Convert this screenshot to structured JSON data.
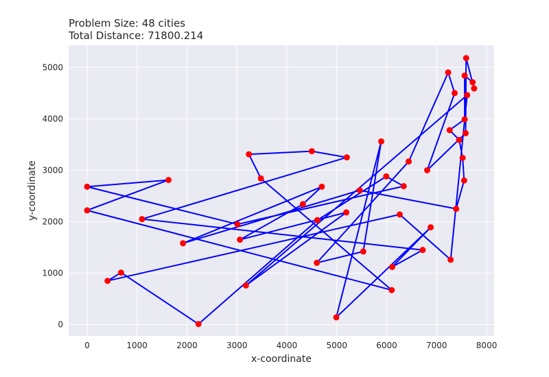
{
  "chart_data": {
    "type": "scatter",
    "title_lines": [
      "Problem Size: 48 cities",
      "Total Distance: 71800.214"
    ],
    "xlabel": "x-coordinate",
    "ylabel": "y-coordinate",
    "xlim": [
      -370,
      8150
    ],
    "ylim": [
      -220,
      5430
    ],
    "x_ticks": [
      0,
      1000,
      2000,
      3000,
      4000,
      5000,
      6000,
      7000,
      8000
    ],
    "y_ticks": [
      0,
      1000,
      2000,
      3000,
      4000,
      5000
    ],
    "grid": true,
    "background": "#eaeaf2",
    "point_color": "#ff0000",
    "line_color": "#0000ff",
    "tour": [
      [
        0,
        2680
      ],
      [
        1630,
        2810
      ],
      [
        0,
        2220
      ],
      [
        6100,
        670
      ],
      [
        3480,
        2840
      ],
      [
        3240,
        3310
      ],
      [
        4500,
        3370
      ],
      [
        5200,
        3250
      ],
      [
        1100,
        2050
      ],
      [
        6720,
        1450
      ],
      [
        6110,
        1120
      ],
      [
        6880,
        1890
      ],
      [
        4990,
        140
      ],
      [
        5890,
        3560
      ],
      [
        5530,
        1420
      ],
      [
        4600,
        1200
      ],
      [
        6440,
        3170
      ],
      [
        7230,
        4900
      ],
      [
        7360,
        4500
      ],
      [
        6810,
        3000
      ],
      [
        7580,
        3720
      ],
      [
        7590,
        5180
      ],
      [
        7750,
        4590
      ],
      [
        7720,
        4710
      ],
      [
        7560,
        4840
      ],
      [
        7560,
        3990
      ],
      [
        7260,
        3780
      ],
      [
        7450,
        3590
      ],
      [
        7520,
        3240
      ],
      [
        7550,
        2800
      ],
      [
        7390,
        2250
      ],
      [
        5460,
        2610
      ],
      [
        1920,
        1580
      ],
      [
        4700,
        2680
      ],
      [
        4320,
        2340
      ],
      [
        3060,
        1650
      ],
      [
        5190,
        2180
      ],
      [
        3180,
        760
      ],
      [
        7610,
        4460
      ],
      [
        7280,
        1260
      ],
      [
        6260,
        2140
      ],
      [
        410,
        850
      ],
      [
        680,
        1010
      ],
      [
        2230,
        10
      ],
      [
        4610,
        2030
      ],
      [
        5990,
        2880
      ],
      [
        6340,
        2690
      ],
      [
        3010,
        1950
      ]
    ]
  }
}
